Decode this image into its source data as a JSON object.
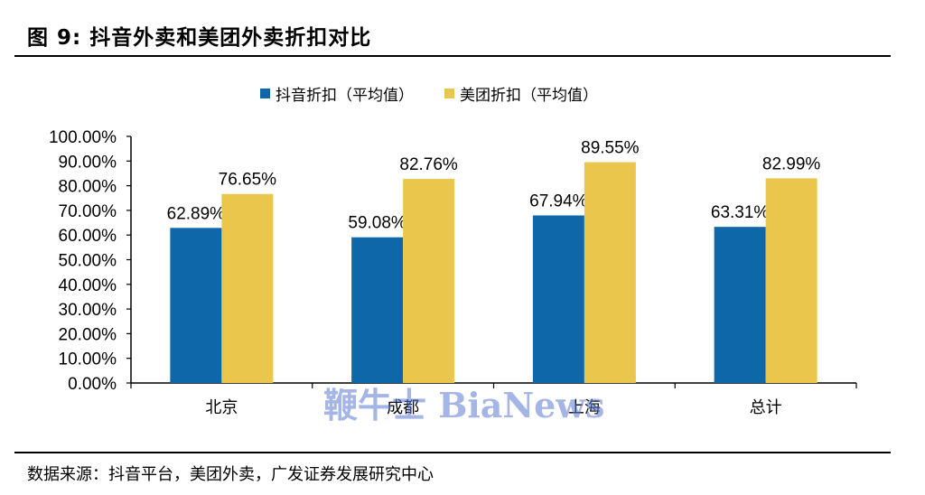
{
  "figure": {
    "title": "图 9: 抖音外卖和美团外卖折扣对比",
    "source": "数据来源：抖音平台，美团外卖，广发证券发展研究中心",
    "watermark": "鞭牛士 BiaNews"
  },
  "colors": {
    "series1": "#0e67a8",
    "series2": "#ebc64d",
    "axis": "#000000"
  },
  "chart_data": {
    "type": "bar",
    "title": "",
    "xlabel": "",
    "ylabel": "",
    "categories": [
      "北京",
      "成都",
      "上海",
      "总计"
    ],
    "series": [
      {
        "name": "抖音折扣（平均值）",
        "values": [
          62.89,
          59.08,
          67.94,
          63.31
        ],
        "labels": [
          "62.89%",
          "59.08%",
          "67.94%",
          "63.31%"
        ]
      },
      {
        "name": "美团折扣（平均值）",
        "values": [
          76.65,
          82.76,
          89.55,
          82.99
        ],
        "labels": [
          "76.65%",
          "82.76%",
          "89.55%",
          "82.99%"
        ]
      }
    ],
    "ylim": [
      0,
      100
    ],
    "yticks": [
      "0.00%",
      "10.00%",
      "20.00%",
      "30.00%",
      "40.00%",
      "50.00%",
      "60.00%",
      "70.00%",
      "80.00%",
      "90.00%",
      "100.00%"
    ],
    "grid": false,
    "legend_position": "top"
  }
}
